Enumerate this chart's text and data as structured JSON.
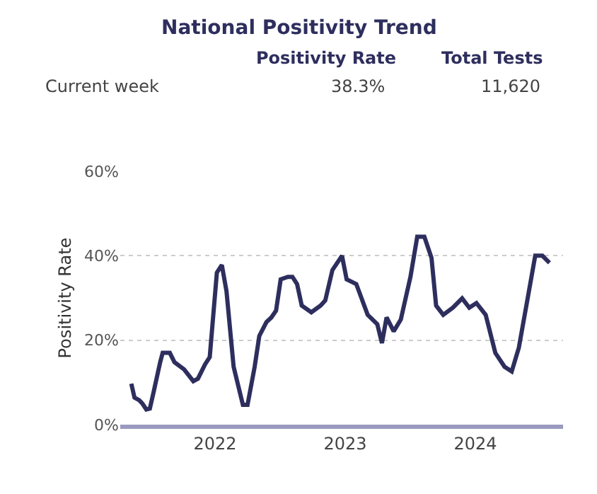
{
  "chart_data": {
    "type": "line",
    "title": "National Positivity Trend",
    "ylabel": "Positivity Rate",
    "annotations": [
      "Positivity Rate",
      "Total Tests",
      "Current week",
      "38.3%",
      "11,620"
    ],
    "x": [
      "2021-05-11",
      "2021-05-20",
      "2021-06-02",
      "2021-06-11",
      "2021-06-22",
      "2021-07-02",
      "2021-07-12",
      "2021-07-31",
      "2021-08-07",
      "2021-08-27",
      "2021-09-09",
      "2021-10-06",
      "2021-11-01",
      "2021-11-14",
      "2021-12-04",
      "2021-12-17",
      "2022-01-06",
      "2022-01-20",
      "2022-02-02",
      "2022-02-22",
      "2022-03-20",
      "2022-04-02",
      "2022-04-22",
      "2022-05-05",
      "2022-05-25",
      "2022-06-08",
      "2022-06-21",
      "2022-07-04",
      "2022-07-24",
      "2022-08-06",
      "2022-08-19",
      "2022-09-01",
      "2022-09-28",
      "2022-10-24",
      "2022-11-06",
      "2022-11-26",
      "2022-12-23",
      "2023-01-05",
      "2023-02-01",
      "2023-03-05",
      "2023-04-01",
      "2023-04-14",
      "2023-04-27",
      "2023-05-17",
      "2023-06-06",
      "2023-07-03",
      "2023-07-22",
      "2023-08-11",
      "2023-08-31",
      "2023-09-13",
      "2023-10-03",
      "2023-10-30",
      "2023-11-25",
      "2023-12-15",
      "2024-01-04",
      "2024-01-30",
      "2024-02-26",
      "2024-03-23",
      "2024-04-12",
      "2024-05-02",
      "2024-05-28",
      "2024-06-17",
      "2024-07-07",
      "2024-07-27"
    ],
    "series": [
      {
        "color": "#2e2e5e",
        "values": [
          9.7,
          6.4,
          5.8,
          5.0,
          3.6,
          3.8,
          7.5,
          14.8,
          17,
          17,
          14.8,
          13.1,
          10.3,
          10.9,
          14.3,
          16,
          36,
          37.8,
          31.6,
          13.7,
          4.7,
          4.7,
          13.7,
          21,
          24.3,
          25.4,
          27,
          34.4,
          35,
          35,
          33.3,
          28.2,
          26.6,
          28.2,
          29.4,
          36.6,
          40,
          34.4,
          33.3,
          26,
          23.8,
          19.3,
          25.4,
          22.1,
          24.9,
          35,
          44.5,
          44.5,
          39.5,
          28.2,
          26,
          27.7,
          29.9,
          27.7,
          28.8,
          26,
          17,
          13.7,
          12.6,
          18.2,
          30.5,
          40,
          40,
          38.3
        ]
      }
    ],
    "xlim": [
      "2021-04-10",
      "2024-09-03"
    ],
    "xticks": [
      "2022",
      "2023",
      "2024"
    ],
    "ylim": [
      0,
      60
    ],
    "yticks": [
      {
        "value": 0,
        "label": "0%"
      },
      {
        "value": 20,
        "label": "20%"
      },
      {
        "value": 40,
        "label": "40%"
      },
      {
        "value": 60,
        "label": "60%"
      }
    ],
    "grid": "y",
    "marker": "none",
    "line_style": "solid"
  }
}
